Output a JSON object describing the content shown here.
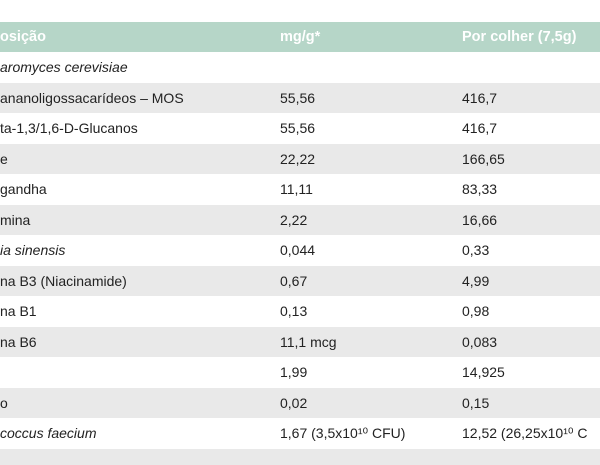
{
  "header": {
    "col1": "osição",
    "col2": "mg/g*",
    "col3": "Por colher (7,5g)"
  },
  "rows": [
    {
      "c1": "aromyces cerevisiae",
      "c2": "",
      "c3": "",
      "italic": true
    },
    {
      "c1": "ananoligossacarídeos – MOS",
      "c2": "55,56",
      "c3": "416,7",
      "italic": false
    },
    {
      "c1": "ta-1,3/1,6-D-Glucanos",
      "c2": "55,56",
      "c3": "416,7",
      "italic": false
    },
    {
      "c1": "e",
      "c2": "22,22",
      "c3": "166,65",
      "italic": false
    },
    {
      "c1": "gandha",
      "c2": "11,11",
      "c3": "83,33",
      "italic": false
    },
    {
      "c1": "mina",
      "c2": "2,22",
      "c3": "16,66",
      "italic": false
    },
    {
      "c1": "ia sinensis",
      "c2": "0,044",
      "c3": "0,33",
      "italic": true
    },
    {
      "c1": "na B3 (Niacinamide)",
      "c2": "0,67",
      "c3": "4,99",
      "italic": false
    },
    {
      "c1": "na B1",
      "c2": "0,13",
      "c3": "0,98",
      "italic": false
    },
    {
      "c1": "na B6",
      "c2": "11,1 mcg",
      "c3": "0,083",
      "italic": false
    },
    {
      "c1": "",
      "c2": "1,99",
      "c3": "14,925",
      "italic": false
    },
    {
      "c1": "o",
      "c2": "0,02",
      "c3": "0,15",
      "italic": false
    },
    {
      "c1": "coccus faecium",
      "c2": "1,67 (3,5x10¹⁰ CFU)",
      "c3": "12,52 (26,25x10¹⁰ C",
      "italic_c1": true
    }
  ]
}
